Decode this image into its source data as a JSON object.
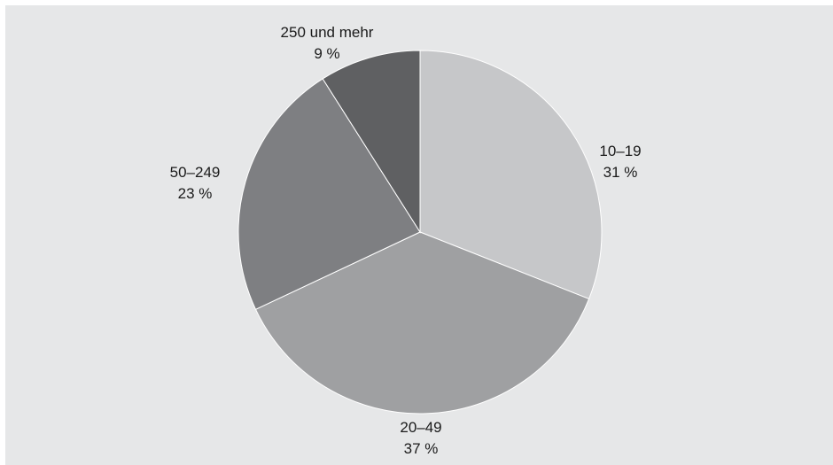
{
  "chart_data": {
    "type": "pie",
    "categories": [
      "10–19",
      "20–49",
      "50–249",
      "250 und mehr"
    ],
    "values": [
      31,
      37,
      23,
      9
    ],
    "value_labels": [
      "31 %",
      "37 %",
      "23 %",
      "9 %"
    ],
    "colors": [
      "#c6c7c9",
      "#9fa0a2",
      "#7e7f82",
      "#5f6062"
    ],
    "start": "12 o'clock",
    "direction": "clockwise",
    "legend": "none",
    "title": ""
  }
}
